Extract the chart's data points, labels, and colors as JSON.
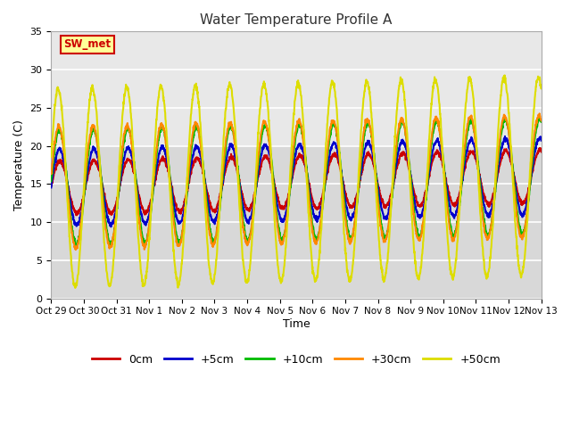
{
  "title": "Water Temperature Profile A",
  "xlabel": "Time",
  "ylabel": "Temperature (C)",
  "ylim": [
    0,
    35
  ],
  "background_color": "#ffffff",
  "plot_bg_color": "#d8d8d8",
  "plot_bg_upper": "#e8e8e8",
  "grid_color": "#ffffff",
  "series": {
    "0cm": {
      "color": "#cc0000",
      "lw": 1.5
    },
    "+5cm": {
      "color": "#0000cc",
      "lw": 1.5
    },
    "+10cm": {
      "color": "#00bb00",
      "lw": 1.5
    },
    "+30cm": {
      "color": "#ff8800",
      "lw": 1.5
    },
    "+50cm": {
      "color": "#dddd00",
      "lw": 1.5
    }
  },
  "annotation_text": "SW_met",
  "annotation_bg": "#ffff99",
  "annotation_border": "#cc0000",
  "tick_labels": [
    "Oct 29",
    "Oct 30",
    "Oct 31",
    "Nov 1",
    "Nov 2",
    "Nov 3",
    "Nov 4",
    "Nov 5",
    "Nov 6",
    "Nov 7",
    "Nov 8",
    "Nov 9",
    "Nov 10",
    "Nov 11",
    "Nov 12",
    "Nov 13"
  ],
  "tide_period_days": 1.05,
  "n_points": 2000
}
